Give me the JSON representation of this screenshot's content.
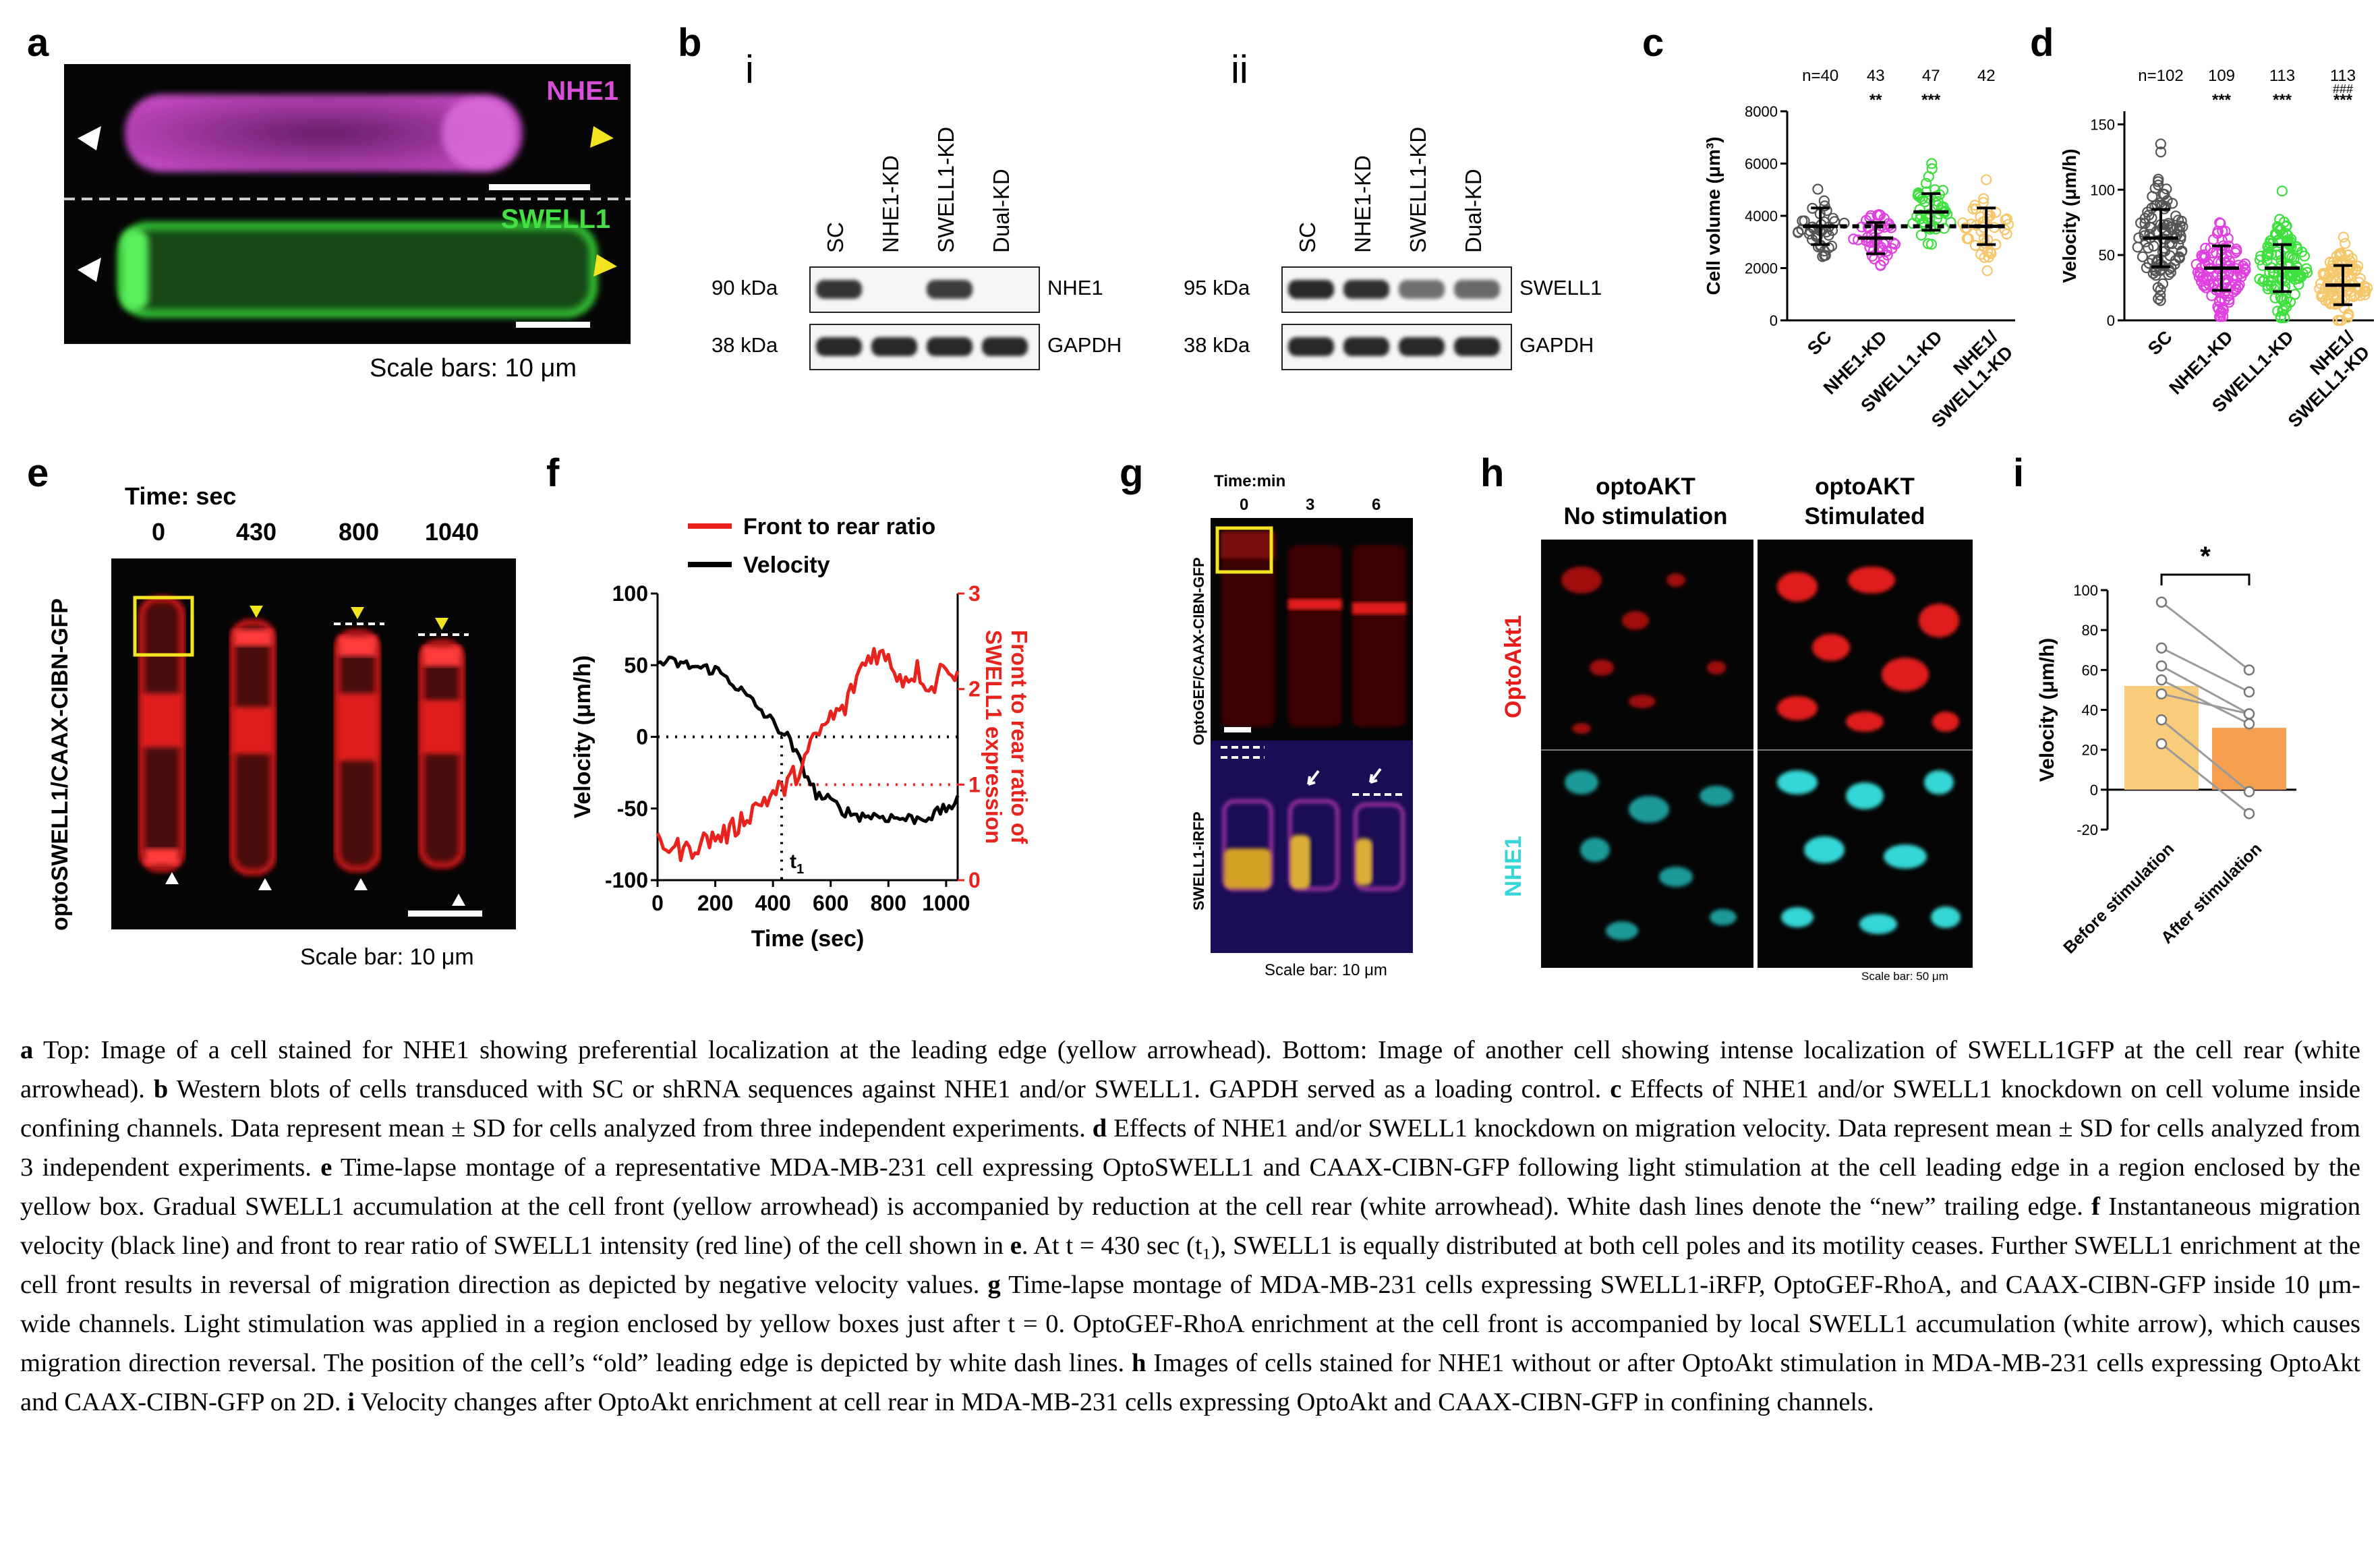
{
  "panel_letters": {
    "a": "a",
    "b": "b",
    "c": "c",
    "d": "d",
    "e": "e",
    "f": "f",
    "g": "g",
    "h": "h",
    "i": "i"
  },
  "panel_a": {
    "top_label": "NHE1",
    "bottom_label": "SWELL1",
    "scale_text": "Scale bars: 10 μm",
    "colors": {
      "nhe1": "#d94fd9",
      "swell1": "#44e044",
      "yellow_arrow": "#f2e41e"
    }
  },
  "panel_b": {
    "sub_i": "i",
    "sub_ii": "ii",
    "lanes_i": [
      "SC",
      "NHE1-KD",
      "SWELL1-KD",
      "Dual-KD"
    ],
    "lanes_ii": [
      "SC",
      "NHE1-KD",
      "SWELL1-KD",
      "Dual-KD"
    ],
    "i_rows": [
      {
        "kda": "90 kDa",
        "protein": "NHE1"
      },
      {
        "kda": "38 kDa",
        "protein": "GAPDH"
      }
    ],
    "ii_rows": [
      {
        "kda": "95 kDa",
        "protein": "SWELL1"
      },
      {
        "kda": "38 kDa",
        "protein": "GAPDH"
      }
    ],
    "band_intensity_i": [
      [
        0.9,
        0.0,
        0.85,
        0.0
      ],
      [
        1.0,
        1.0,
        1.0,
        1.0
      ]
    ],
    "band_intensity_ii": [
      [
        1.0,
        0.95,
        0.45,
        0.5
      ],
      [
        1.0,
        1.0,
        1.0,
        1.0
      ]
    ]
  },
  "panel_c": {
    "ylabel": "Cell volume (μm³)",
    "yticks": [
      "0",
      "2000",
      "4000",
      "6000",
      "8000"
    ],
    "categories": [
      "SC",
      "NHE1-KD",
      "SWELL1-KD",
      "NHE1/\nSWELL1-KD"
    ],
    "n_labels": [
      "n=40",
      "43",
      "47",
      "42"
    ],
    "sig": [
      "",
      "**",
      "***",
      ""
    ],
    "colors": [
      "#555555",
      "#e040e0",
      "#3ee03e",
      "#f5c66a"
    ]
  },
  "panel_d": {
    "ylabel": "Velocity (μm/h)",
    "yticks": [
      "0",
      "50",
      "100",
      "150"
    ],
    "categories": [
      "SC",
      "NHE1-KD",
      "SWELL1-KD",
      "NHE1/\nSWELL1-KD"
    ],
    "n_labels": [
      "n=102",
      "109",
      "113",
      "113"
    ],
    "sig": [
      "",
      "***",
      "***",
      "***"
    ],
    "sig2": [
      "",
      "",
      "",
      "###"
    ],
    "colors": [
      "#555555",
      "#e040e0",
      "#3ee03e",
      "#f5c66a"
    ]
  },
  "panel_e": {
    "time_title": "Time: sec",
    "times": [
      "0",
      "430",
      "800",
      "1040"
    ],
    "side_label": "optoSWELL1/CAAX-CIBN-GFP",
    "scale_text": "Scale bar: 10 μm"
  },
  "panel_f": {
    "legend": [
      "Front to rear ratio",
      "Velocity"
    ],
    "xlabel": "Time (sec)",
    "ylabel_left": "Velocity (μm/h)",
    "ylabel_right_1": "Front to rear ratio of",
    "ylabel_right_2": "SWELL1 expression",
    "xticks": [
      "0",
      "200",
      "400",
      "600",
      "800",
      "1000"
    ],
    "yticks_left": [
      "-100",
      "-50",
      "0",
      "50",
      "100"
    ],
    "yticks_right": [
      "0",
      "1",
      "2",
      "3"
    ],
    "t1_label": "t",
    "t1_sub": "1",
    "colors": {
      "ratio": "#e8221c",
      "velocity": "#000000"
    }
  },
  "panel_g": {
    "time_title": "Time:min",
    "times": [
      "0",
      "3",
      "6"
    ],
    "side_top": "OptoGEF/CAAX-CIBN-GFP",
    "side_bottom": "SWELL1-iRFP",
    "scale_text": "Scale bar: 10 μm"
  },
  "panel_h": {
    "col1_line1": "optoAKT",
    "col1_line2": "No stimulation",
    "col2_line1": "optoAKT",
    "col2_line2": "Stimulated",
    "row1": "OptoAkt1",
    "row2": "NHE1",
    "scale_text": "Scale bar: 50 μm",
    "colors": {
      "optoakt": "#e81a1a",
      "nhe1": "#35d6d6"
    }
  },
  "panel_i": {
    "ylabel": "Velocity (μm/h)",
    "yticks": [
      "-20",
      "0",
      "20",
      "40",
      "60",
      "80",
      "100"
    ],
    "categories": [
      "Before stimulation",
      "After stimulation"
    ],
    "sig": "*",
    "colors": [
      "#f8cc7a",
      "#f5a050"
    ]
  },
  "chart_data": [
    {
      "type": "scatter",
      "panel": "c",
      "ylabel": "Cell volume (μm³)",
      "categories": [
        "SC",
        "NHE1-KD",
        "SWELL1-KD",
        "NHE1/SWELL1-KD"
      ],
      "ylim": [
        0,
        8000
      ],
      "means": [
        3600,
        3150,
        4150,
        3600
      ],
      "sd": [
        700,
        600,
        700,
        700
      ],
      "n": [
        40,
        43,
        47,
        42
      ],
      "ranges": [
        [
          1900,
          5100
        ],
        [
          2100,
          5500
        ],
        [
          2700,
          6300
        ],
        [
          1900,
          5700
        ]
      ]
    },
    {
      "type": "scatter",
      "panel": "d",
      "ylabel": "Velocity (μm/h)",
      "categories": [
        "SC",
        "NHE1-KD",
        "SWELL1-KD",
        "NHE1/SWELL1-KD"
      ],
      "ylim": [
        0,
        160
      ],
      "means": [
        63,
        40,
        40,
        27
      ],
      "sd": [
        22,
        17,
        18,
        15
      ],
      "n": [
        102,
        109,
        113,
        113
      ],
      "ranges": [
        [
          5,
          135
        ],
        [
          3,
          95
        ],
        [
          2,
          100
        ],
        [
          0,
          75
        ]
      ]
    },
    {
      "type": "line",
      "panel": "f",
      "xlabel": "Time (sec)",
      "xlim": [
        0,
        1040
      ],
      "series": [
        {
          "name": "Velocity",
          "axis": "left",
          "ylim": [
            -100,
            100
          ],
          "x": [
            0,
            50,
            100,
            150,
            200,
            250,
            300,
            350,
            400,
            450,
            500,
            550,
            600,
            650,
            700,
            750,
            800,
            850,
            900,
            950,
            1000,
            1040
          ],
          "y": [
            52,
            52,
            50,
            48,
            47,
            40,
            30,
            20,
            10,
            0,
            -20,
            -40,
            -45,
            -52,
            -55,
            -55,
            -56,
            -57,
            -57,
            -55,
            -50,
            -45
          ]
        },
        {
          "name": "Front to rear ratio",
          "axis": "right",
          "ylim": [
            0,
            3
          ],
          "x": [
            0,
            50,
            100,
            150,
            200,
            250,
            300,
            350,
            400,
            450,
            500,
            550,
            600,
            650,
            700,
            750,
            800,
            850,
            900,
            950,
            1000,
            1040
          ],
          "y": [
            0.4,
            0.35,
            0.3,
            0.4,
            0.45,
            0.5,
            0.65,
            0.8,
            0.9,
            1.0,
            1.2,
            1.5,
            1.7,
            1.8,
            2.2,
            2.4,
            2.3,
            2.1,
            2.2,
            2.0,
            2.3,
            2.1
          ]
        }
      ],
      "annotations": [
        {
          "label": "t1",
          "x": 430
        }
      ]
    },
    {
      "type": "bar",
      "panel": "i",
      "ylabel": "Velocity (μm/h)",
      "categories": [
        "Before stimulation",
        "After stimulation"
      ],
      "values": [
        52,
        31
      ],
      "ylim": [
        -20,
        100
      ],
      "paired_points": [
        [
          94,
          60
        ],
        [
          71,
          49
        ],
        [
          62,
          38
        ],
        [
          55,
          33
        ],
        [
          48,
          38
        ],
        [
          35,
          -1
        ],
        [
          23,
          -12
        ]
      ]
    }
  ],
  "caption": {
    "a_letter": "a",
    "a_text": " Top: Image of a cell stained for NHE1 showing preferential localization at the leading edge (yellow arrowhead). Bottom: Image of another cell showing intense localization of SWELL1GFP at the cell rear (white arrowhead). ",
    "b_letter": "b",
    "b_text": " Western blots of cells transduced with SC or shRNA sequences against NHE1 and/or SWELL1. GAPDH served as a loading control. ",
    "c_letter": "c",
    "c_text": " Effects of NHE1 and/or SWELL1 knockdown on cell volume inside confining channels. Data represent mean ± SD for cells analyzed from three independent experiments. ",
    "d_letter": "d",
    "d_text": " Effects of NHE1 and/or SWELL1 knockdown on migration velocity. Data represent mean ± SD for cells analyzed from 3 independent experiments. ",
    "e_letter": "e",
    "e_text": " Time-lapse montage of a representative MDA-MB-231 cell expressing OptoSWELL1 and CAAX-CIBN-GFP following light stimulation at the cell leading edge in a region enclosed by the yellow box. Gradual SWELL1 accumulation at the cell front (yellow arrowhead) is accompanied by reduction at the cell rear (white arrowhead). White dash lines denote the “new” trailing edge. ",
    "f_letter": "f",
    "f_text": " Instantaneous migration velocity (black line) and front to rear ratio of SWELL1 intensity (red line) of the cell shown in ",
    "f_bold_e": "e",
    "f_text2": ". At t = 430 sec (t₁), SWELL1 is equally distributed at both cell poles and its motility ceases. Further SWELL1 enrichment at the cell front results in reversal of migration direction as depicted by negative velocity values. ",
    "g_letter": "g",
    "g_text": " Time-lapse montage of MDA-MB-231 cells expressing SWELL1-iRFP, OptoGEF-RhoA, and CAAX-CIBN-GFP inside 10 μm-wide channels. Light stimulation was applied in a region enclosed by yellow boxes just after t = 0. OptoGEF-RhoA enrichment at the cell front is accompanied by local SWELL1 accumulation (white arrow), which causes migration direction reversal. The position of the cell’s “old” leading edge is depicted by white dash lines. ",
    "h_letter": "h",
    "h_text": " Images of  cells stained for NHE1 without or after OptoAkt stimulation in MDA-MB-231 cells expressing OptoAkt and CAAX-CIBN-GFP on 2D. ",
    "i_letter": "i",
    "i_text": " Velocity changes after OptoAkt enrichment at cell rear in MDA-MB-231 cells expressing OptoAkt and CAAX-CIBN-GFP in confining channels."
  }
}
